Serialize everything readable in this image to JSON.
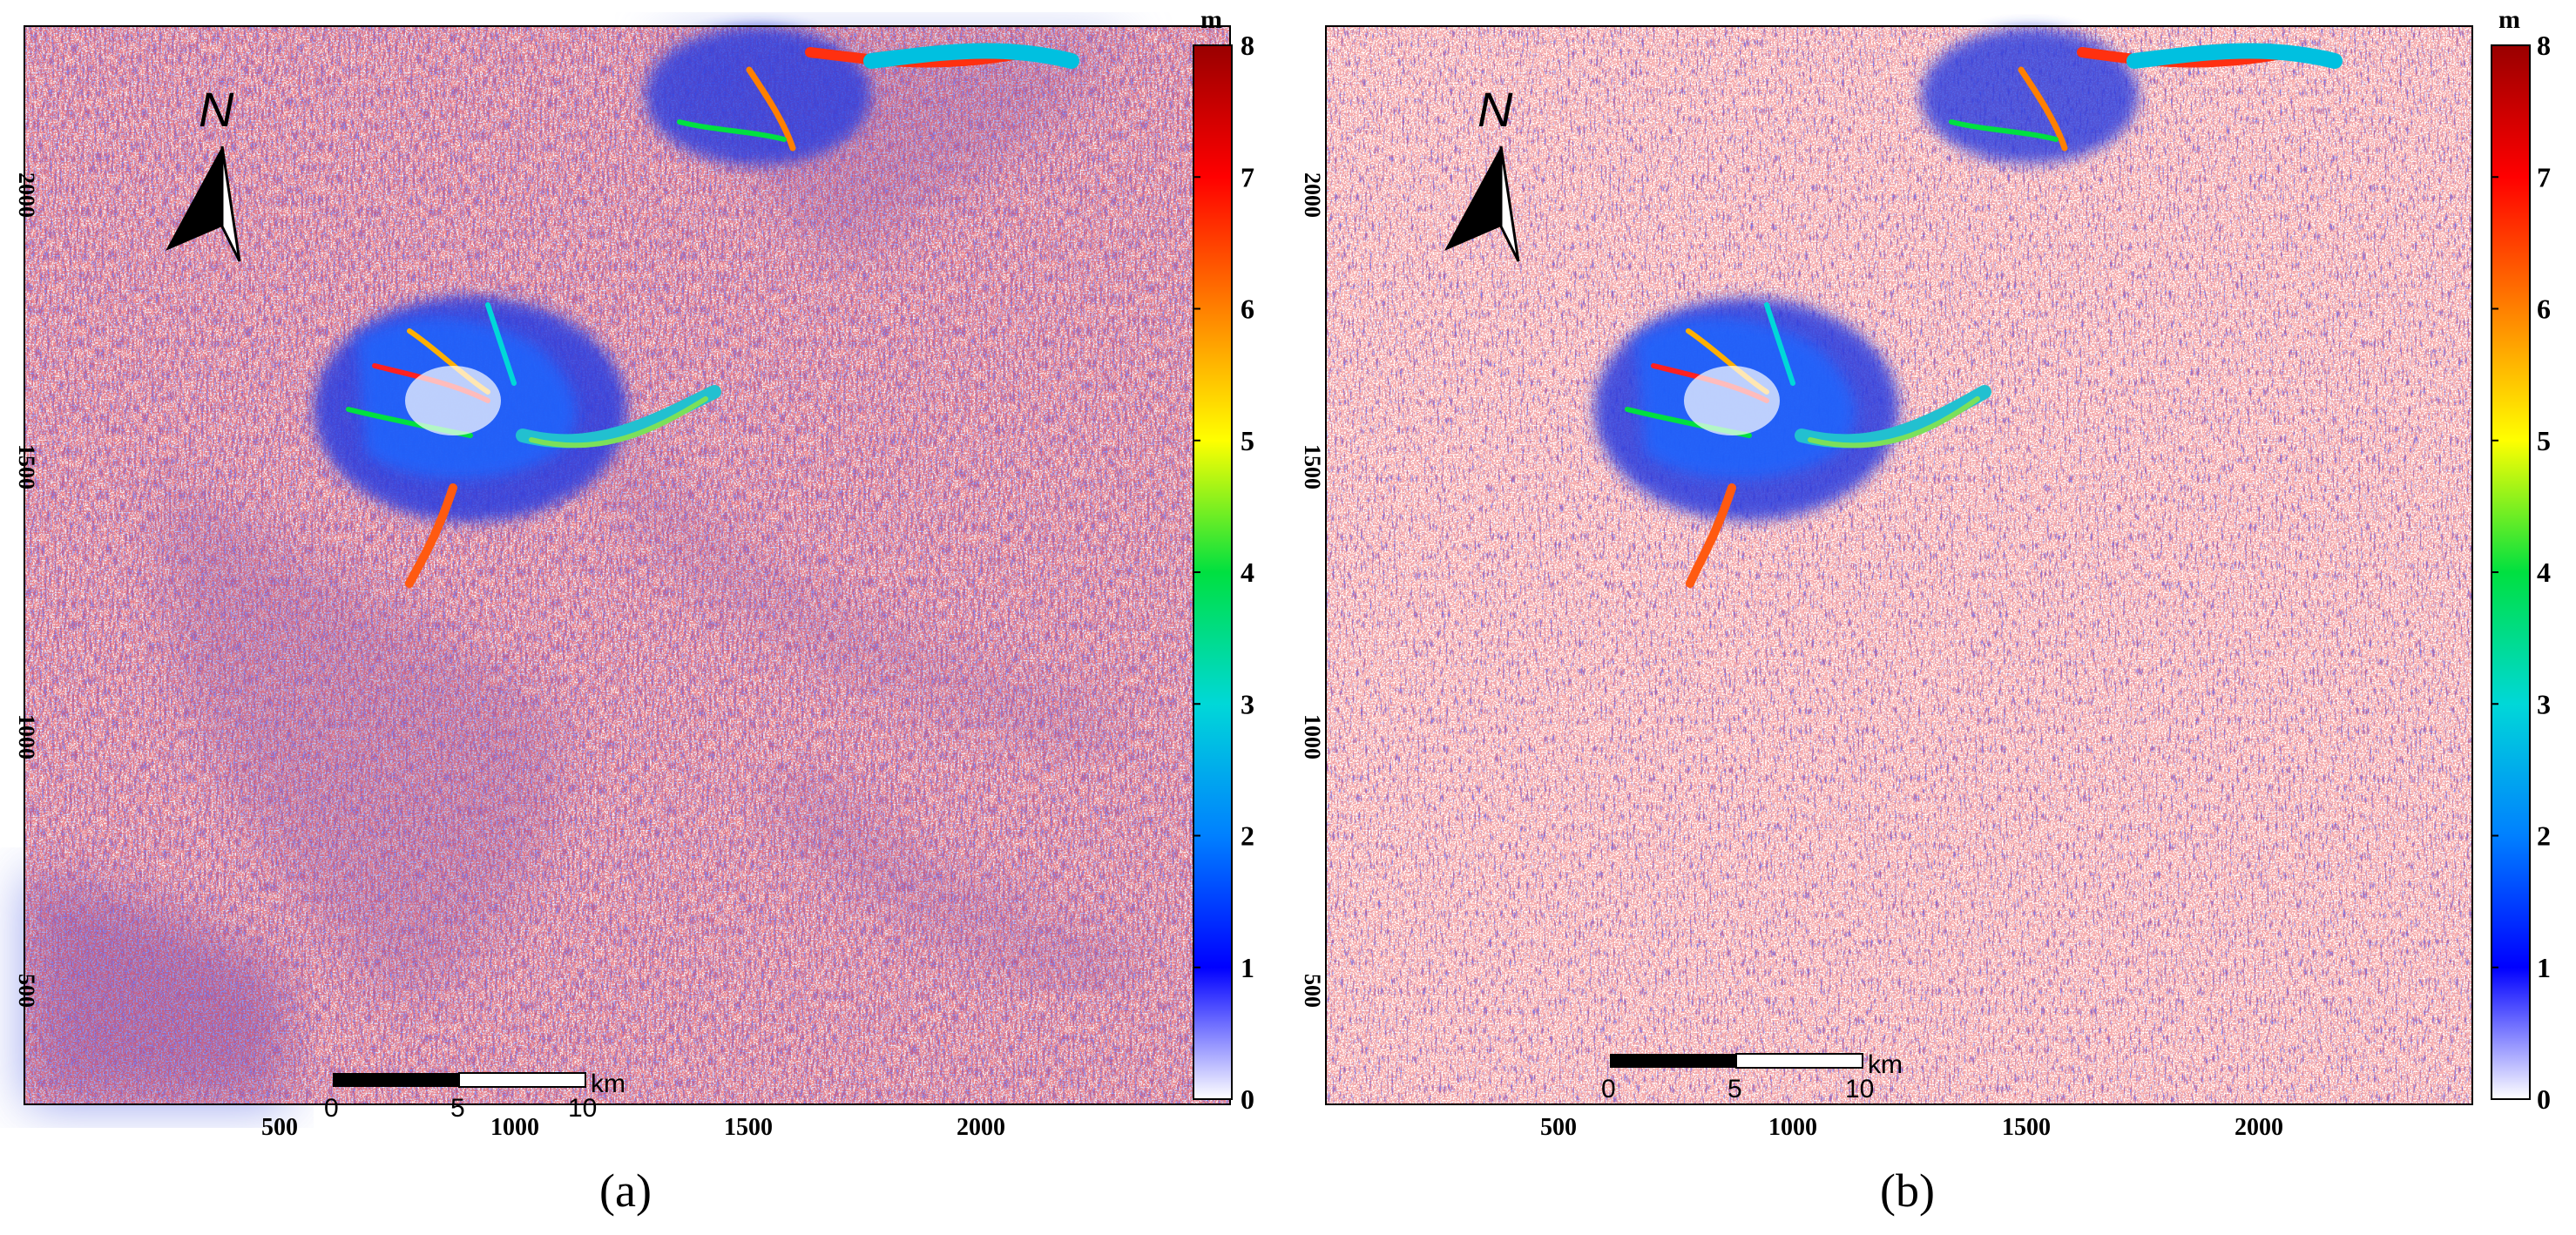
{
  "figure": {
    "panels": [
      {
        "caption": "(a)",
        "north_label": "N",
        "scalebar": {
          "ticks": [
            "0",
            "5",
            "10"
          ],
          "unit": "km"
        },
        "colorbar": {
          "unit": "m",
          "ticks": [
            "0",
            "1",
            "2",
            "3",
            "4",
            "5",
            "6",
            "7",
            "8"
          ]
        },
        "y_ticks": [
          "2000",
          "1500",
          "1000",
          "500"
        ],
        "x_ticks": [
          "500",
          "1000",
          "1500",
          "2000"
        ]
      },
      {
        "caption": "(b)",
        "north_label": "N",
        "scalebar": {
          "ticks": [
            "0",
            "5",
            "10"
          ],
          "unit": "km"
        },
        "colorbar": {
          "unit": "m",
          "ticks": [
            "0",
            "1",
            "2",
            "3",
            "4",
            "5",
            "6",
            "7",
            "8"
          ]
        },
        "y_ticks": [
          "2000",
          "1500",
          "1000",
          "500"
        ],
        "x_ticks": [
          "500",
          "1000",
          "1500",
          "2000"
        ]
      }
    ],
    "colormap": [
      "#ffffff",
      "#0000ff",
      "#0080ff",
      "#00d8d8",
      "#00e040",
      "#ffff00",
      "#ff8000",
      "#ff0000",
      "#990000"
    ]
  }
}
